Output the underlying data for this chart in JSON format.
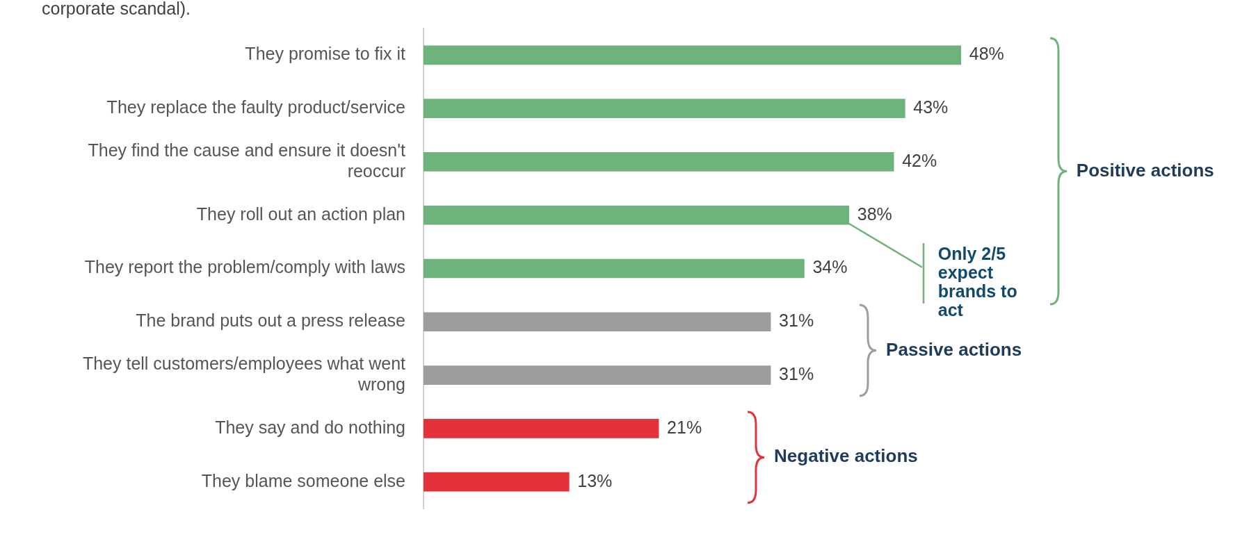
{
  "chart_data": {
    "type": "bar",
    "orientation": "horizontal",
    "title": "corporate scandal).",
    "categories": [
      "They promise to fix it",
      "They replace the faulty product/service",
      "They find the cause and ensure it doesn't reoccur",
      "They roll out an action plan",
      "They report the problem/comply with laws",
      "The brand puts out a press release",
      "They tell customers/employees what went wrong",
      "They say and do nothing",
      "They blame someone else"
    ],
    "values": [
      48,
      43,
      42,
      38,
      34,
      31,
      31,
      21,
      13
    ],
    "colors": [
      "#6db37b",
      "#6db37b",
      "#6db37b",
      "#6db37b",
      "#6db37b",
      "#9d9d9d",
      "#9d9d9d",
      "#e3323a",
      "#e3323a"
    ],
    "value_labels": [
      "48%",
      "43%",
      "42%",
      "38%",
      "34%",
      "31%",
      "31%",
      "21%",
      "13%"
    ],
    "legend": false,
    "annotations": [
      "Positive actions",
      "Passive actions",
      "Negative actions",
      "Only 2/5 expect brands to act"
    ]
  }
}
